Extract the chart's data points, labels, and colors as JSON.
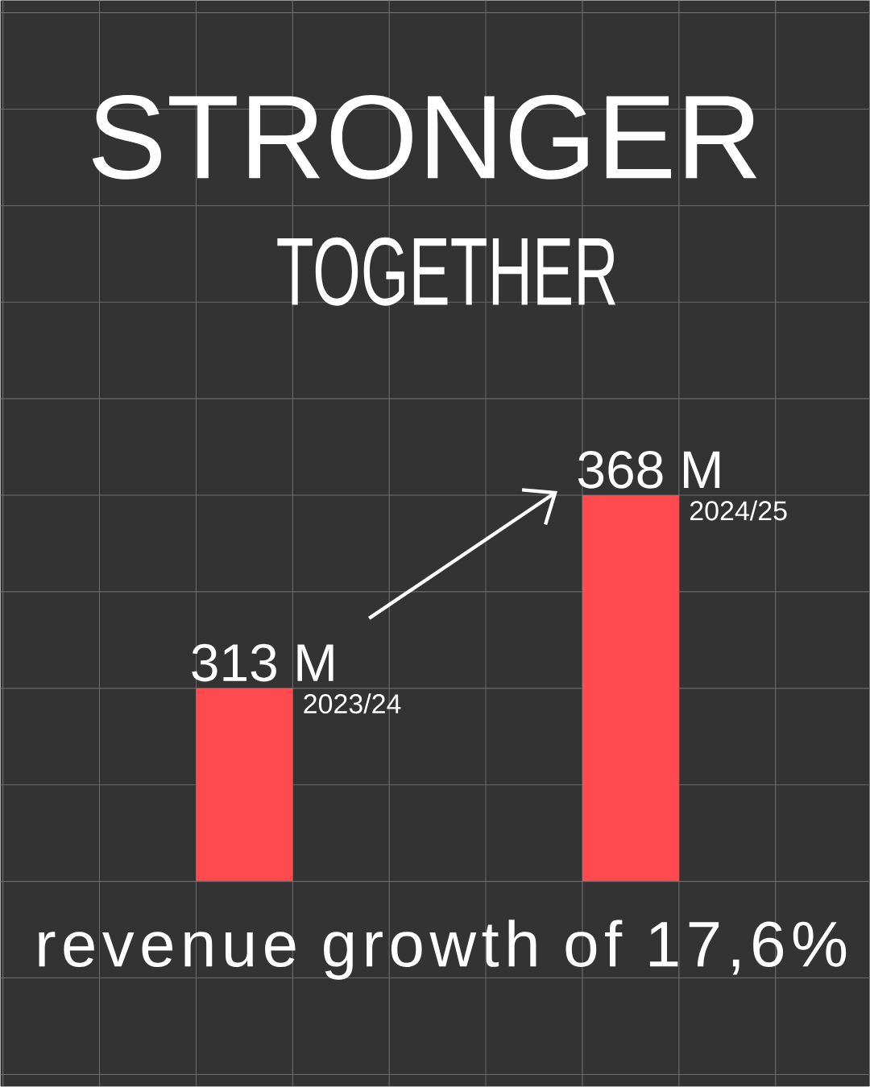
{
  "chart_data": {
    "type": "bar",
    "title": "STRONGER",
    "subtitle": "TOGETHER",
    "categories": [
      "2023/24",
      "2024/25"
    ],
    "values": [
      313,
      368
    ],
    "value_labels": [
      "313 M",
      "368 M"
    ],
    "color": "#ff4b4f",
    "ylim": [
      258,
      368
    ],
    "annotations": [
      "revenue growth of 17,6%"
    ]
  }
}
